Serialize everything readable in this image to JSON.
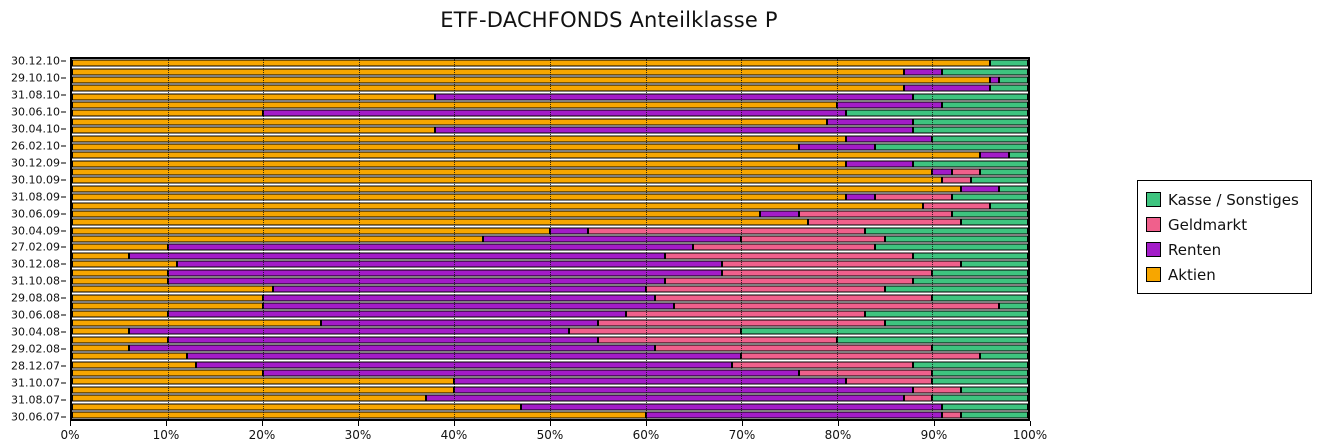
{
  "title": "ETF-DACHFONDS Anteilklasse P",
  "legend": {
    "items": [
      {
        "label": "Kasse / Sonstiges",
        "color": "#3ec47f"
      },
      {
        "label": "Geldmarkt",
        "color": "#f0608c"
      },
      {
        "label": "Renten",
        "color": "#a31cc8"
      },
      {
        "label": "Aktien",
        "color": "#f7a600"
      }
    ]
  },
  "axes": {
    "x_ticks": [
      "0%",
      "10%",
      "20%",
      "30%",
      "40%",
      "50%",
      "60%",
      "70%",
      "80%",
      "90%",
      "100%"
    ],
    "y_labels": [
      "30.12.10",
      "29.10.10",
      "31.08.10",
      "30.06.10",
      "30.04.10",
      "26.02.10",
      "30.12.09",
      "30.10.09",
      "31.08.09",
      "30.06.09",
      "30.04.09",
      "27.02.09",
      "30.12.08",
      "31.10.08",
      "29.08.08",
      "30.06.08",
      "30.04.08",
      "29.02.08",
      "28.12.07",
      "31.10.07",
      "31.08.07",
      "30.06.07"
    ]
  },
  "chart_data": {
    "type": "bar",
    "orientation": "horizontal",
    "stacked": true,
    "title": "ETF-DACHFONDS Anteilklasse P",
    "xlabel": "",
    "ylabel": "",
    "xlim": [
      0,
      100
    ],
    "x_tick_labels": [
      "0%",
      "10%",
      "20%",
      "30%",
      "40%",
      "50%",
      "60%",
      "70%",
      "80%",
      "90%",
      "100%"
    ],
    "categories": [
      "30.12.10",
      "",
      "29.10.10",
      "",
      "31.08.10",
      "",
      "30.06.10",
      "",
      "30.04.10",
      "",
      "26.02.10",
      "",
      "30.12.09",
      "",
      "30.10.09",
      "",
      "31.08.09",
      "",
      "30.06.09",
      "",
      "30.04.09",
      "",
      "27.02.09",
      "",
      "30.12.08",
      "",
      "31.10.08",
      "",
      "29.08.08",
      "",
      "30.06.08",
      "",
      "30.04.08",
      "",
      "29.02.08",
      "",
      "28.12.07",
      "",
      "31.10.07",
      "",
      "31.08.07",
      "",
      "30.06.07"
    ],
    "series": [
      {
        "name": "Aktien",
        "key": "aktien",
        "color": "#f7a600",
        "values": [
          96,
          87,
          96,
          87,
          38,
          80,
          20,
          79,
          38,
          81,
          76,
          95,
          81,
          90,
          91,
          93,
          81,
          89,
          72,
          77,
          50,
          43,
          10,
          6,
          11,
          10,
          10,
          21,
          20,
          20,
          10,
          26,
          6,
          10,
          6,
          12,
          13,
          20,
          40,
          40,
          37,
          47,
          60
        ]
      },
      {
        "name": "Renten",
        "key": "renten",
        "color": "#a31cc8",
        "values": [
          0,
          4,
          1,
          9,
          50,
          11,
          61,
          9,
          50,
          9,
          8,
          3,
          7,
          2,
          0,
          4,
          3,
          0,
          4,
          0,
          4,
          27,
          55,
          56,
          57,
          58,
          52,
          39,
          41,
          43,
          48,
          29,
          46,
          45,
          55,
          58,
          56,
          56,
          41,
          48,
          50,
          44,
          31
        ]
      },
      {
        "name": "Geldmarkt",
        "key": "geldmarkt",
        "color": "#f0608c",
        "values": [
          0,
          0,
          0,
          0,
          0,
          0,
          0,
          0,
          0,
          0,
          0,
          0,
          0,
          3,
          3,
          0,
          8,
          7,
          16,
          16,
          29,
          15,
          19,
          26,
          25,
          22,
          26,
          25,
          29,
          34,
          25,
          30,
          18,
          25,
          29,
          25,
          19,
          14,
          9,
          5,
          3,
          0,
          2
        ]
      },
      {
        "name": "Kasse / Sonstiges",
        "key": "kasse",
        "color": "#3ec47f",
        "values": [
          4,
          9,
          3,
          4,
          12,
          9,
          19,
          12,
          12,
          10,
          16,
          2,
          12,
          5,
          6,
          3,
          8,
          4,
          8,
          7,
          17,
          15,
          16,
          12,
          7,
          10,
          12,
          15,
          10,
          3,
          17,
          15,
          30,
          20,
          10,
          5,
          12,
          10,
          10,
          7,
          10,
          9,
          7
        ]
      }
    ]
  }
}
